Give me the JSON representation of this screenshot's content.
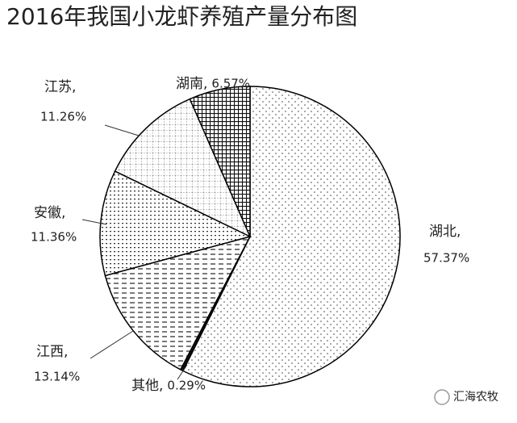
{
  "chart_data": {
    "type": "pie",
    "title": "2016年我国小龙虾养殖产量分布图",
    "categories": [
      "湖北,",
      "其他,",
      "江西,",
      "安徽,",
      "江苏,",
      "湖南,"
    ],
    "values": [
      57.37,
      0.29,
      13.14,
      11.36,
      11.26,
      6.57
    ],
    "value_labels": [
      "57.37%",
      "0.29%",
      "13.14%",
      "11.36%",
      "11.26%",
      "6.57%"
    ],
    "color": "#000000"
  },
  "watermark": "汇海农牧"
}
